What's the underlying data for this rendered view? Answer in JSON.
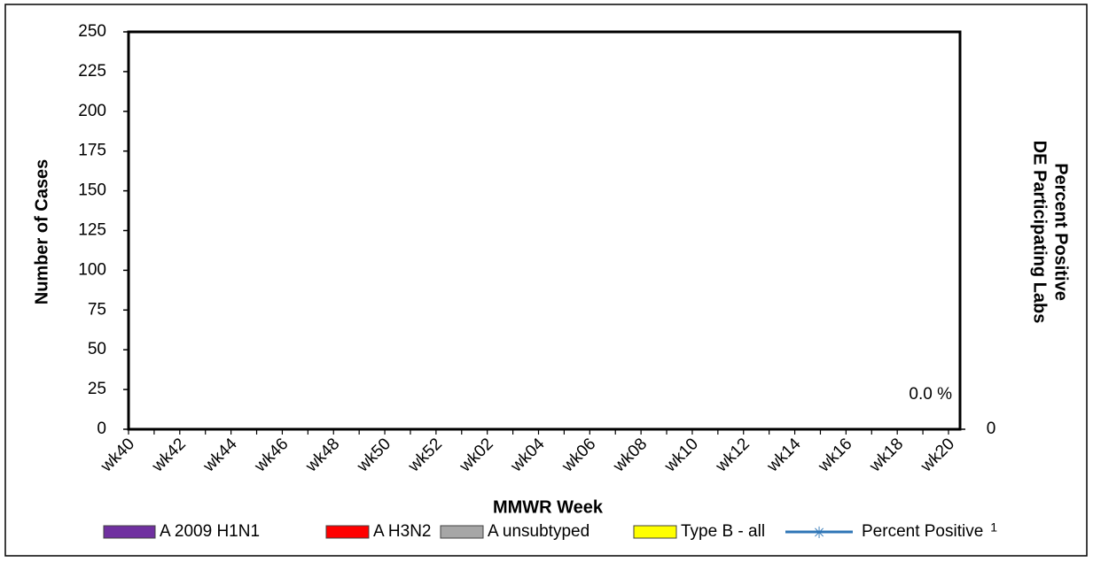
{
  "chart_data": {
    "type": "bar",
    "ylabel": "Number of Cases",
    "y2label": [
      "Percent Positive",
      "DE Participating Labs"
    ],
    "xlabel": "MMWR Week",
    "categories": [
      "wk40",
      null,
      "wk42",
      null,
      "wk44",
      null,
      "wk46",
      null,
      "wk48",
      null,
      "wk50",
      null,
      "wk52",
      null,
      "wk02",
      null,
      "wk04",
      null,
      "wk06",
      null,
      "wk08",
      null,
      "wk10",
      null,
      "wk12",
      null,
      "wk14",
      null,
      "wk16",
      null,
      "wk18",
      null,
      "wk20"
    ],
    "series": [
      {
        "name": "A 2009 H1N1",
        "color": "#7030a0",
        "values": [
          null,
          null,
          null,
          null,
          null,
          null,
          null,
          null,
          null,
          null,
          null,
          null,
          null,
          null,
          null,
          null,
          null,
          null,
          null,
          null,
          null,
          null,
          null,
          null,
          null,
          null,
          null,
          null,
          null,
          null,
          null,
          null,
          null
        ]
      },
      {
        "name": "A H3N2",
        "color": "#ff0000",
        "values": [
          null,
          null,
          null,
          null,
          null,
          null,
          null,
          null,
          null,
          null,
          null,
          null,
          null,
          null,
          null,
          null,
          null,
          null,
          null,
          null,
          null,
          null,
          null,
          null,
          null,
          null,
          null,
          null,
          null,
          null,
          null,
          null,
          null
        ]
      },
      {
        "name": "A unsubtyped",
        "color": "#a6a6a6",
        "values": [
          null,
          null,
          null,
          null,
          null,
          null,
          null,
          null,
          null,
          null,
          null,
          null,
          null,
          null,
          null,
          null,
          null,
          null,
          null,
          null,
          null,
          null,
          null,
          null,
          null,
          null,
          null,
          null,
          null,
          null,
          null,
          null,
          null
        ]
      },
      {
        "name": "Type B - all",
        "color": "#ffff00",
        "values": [
          null,
          null,
          null,
          null,
          null,
          null,
          null,
          null,
          null,
          null,
          null,
          null,
          null,
          null,
          null,
          null,
          null,
          null,
          null,
          null,
          null,
          null,
          null,
          null,
          null,
          null,
          null,
          null,
          null,
          null,
          null,
          null,
          null
        ]
      },
      {
        "name": "Percent Positive",
        "footnote": "1",
        "color": "#2e75b6",
        "type": "line",
        "axis": "y2",
        "values": [
          null,
          null,
          null,
          null,
          null,
          null,
          null,
          null,
          null,
          null,
          null,
          null,
          null,
          null,
          null,
          null,
          null,
          null,
          null,
          null,
          null,
          null,
          null,
          null,
          null,
          null,
          null,
          null,
          null,
          null,
          null,
          null,
          null
        ]
      }
    ],
    "annotation": "0.0 %",
    "ylim": [
      0,
      250
    ],
    "yticks": [
      0,
      25,
      50,
      75,
      100,
      125,
      150,
      175,
      200,
      225,
      250
    ],
    "y2ticks": [
      0
    ],
    "grid": false,
    "legend": "bottom"
  }
}
